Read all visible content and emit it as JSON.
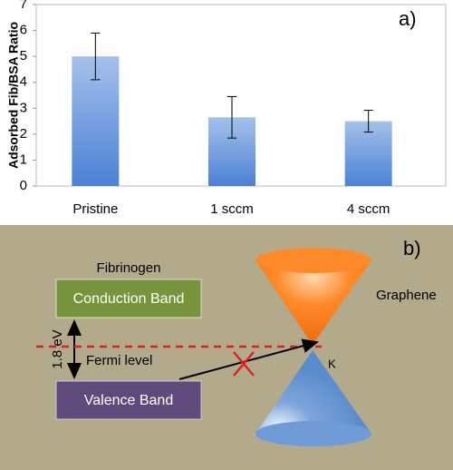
{
  "chart_data": {
    "type": "bar",
    "panel_label": "a)",
    "ylabel": "Adsorbed Fib/BSA Ratio",
    "categories": [
      "Pristine",
      "1 sccm",
      "4 sccm"
    ],
    "values": [
      5.0,
      2.65,
      2.5
    ],
    "errors": [
      0.9,
      0.8,
      0.42
    ],
    "color": "#4a82d6",
    "ylim": [
      0,
      7
    ],
    "yticks": [
      0,
      1,
      2,
      3,
      4,
      5,
      6,
      7
    ]
  },
  "diagram": {
    "panel_label": "b)",
    "fibrinogen": "Fibrinogen",
    "conduction_band": "Conduction Band",
    "fermi_level": "Fermi level",
    "gap": "1.8 eV",
    "valence_band": "Valence Band",
    "graphene": "Graphene",
    "k_point": "K"
  }
}
